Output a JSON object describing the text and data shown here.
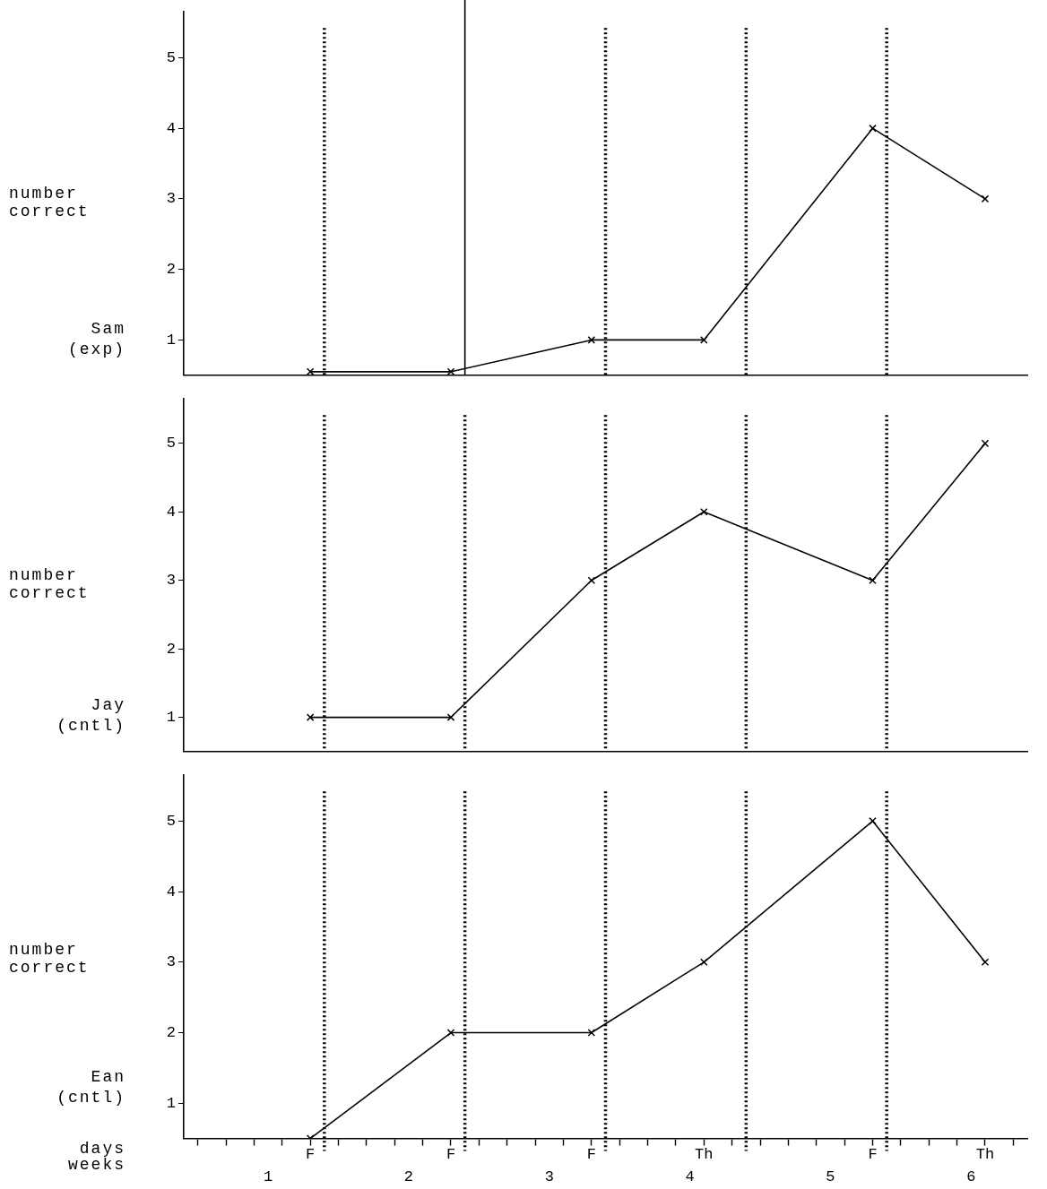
{
  "chart_data": [
    {
      "type": "line",
      "title": "Sam",
      "subtitle": "(exp)",
      "ylabel": "number correct",
      "categories": [
        null,
        null,
        null,
        null,
        null,
        null,
        null,
        null,
        null,
        null,
        null,
        null,
        null,
        null,
        null,
        null,
        null,
        null,
        null,
        null,
        null,
        null,
        null,
        null,
        null,
        null,
        null,
        null,
        null,
        null
      ],
      "series": [
        {
          "color": "#000000",
          "values": [
            null,
            null,
            null,
            null,
            0.55,
            null,
            null,
            null,
            null,
            0.55,
            null,
            null,
            null,
            null,
            1,
            null,
            null,
            null,
            1,
            null,
            null,
            null,
            null,
            null,
            4,
            null,
            null,
            null,
            3,
            null
          ]
        }
      ],
      "ylim": [
        0.5,
        5.65
      ],
      "yticks": [
        1,
        2,
        3,
        4,
        5
      ],
      "tick_labels": "y",
      "grid": false,
      "legend": false,
      "marker": "cross",
      "line_style": "solid"
    },
    {
      "type": "line",
      "title": "Jay",
      "subtitle": "(cntl)",
      "ylabel": "number correct",
      "categories": [
        null,
        null,
        null,
        null,
        null,
        null,
        null,
        null,
        null,
        null,
        null,
        null,
        null,
        null,
        null,
        null,
        null,
        null,
        null,
        null,
        null,
        null,
        null,
        null,
        null,
        null,
        null,
        null,
        null,
        null
      ],
      "series": [
        {
          "color": "#000000",
          "values": [
            null,
            null,
            null,
            null,
            1,
            null,
            null,
            null,
            null,
            1,
            null,
            null,
            null,
            null,
            3,
            null,
            null,
            null,
            4,
            null,
            null,
            null,
            null,
            null,
            3,
            null,
            null,
            null,
            5,
            null
          ]
        }
      ],
      "ylim": [
        0.5,
        5.65
      ],
      "yticks": [
        1,
        2,
        3,
        4,
        5
      ],
      "tick_labels": "y",
      "grid": false,
      "legend": false,
      "marker": "cross",
      "line_style": "solid"
    },
    {
      "type": "line",
      "title": "Ean",
      "subtitle": "(cntl)",
      "ylabel": "number correct",
      "xlabel": "days",
      "categories": [
        null,
        null,
        null,
        null,
        "F",
        null,
        null,
        null,
        null,
        "F",
        null,
        null,
        null,
        null,
        "F",
        null,
        null,
        null,
        "Th",
        null,
        null,
        null,
        null,
        null,
        "F",
        null,
        null,
        null,
        "Th",
        null
      ],
      "series": [
        {
          "color": "#000000",
          "values": [
            null,
            null,
            null,
            null,
            0.5,
            null,
            null,
            null,
            null,
            2,
            null,
            null,
            null,
            null,
            2,
            null,
            null,
            null,
            3,
            null,
            null,
            null,
            null,
            null,
            5,
            null,
            null,
            null,
            3,
            null
          ]
        }
      ],
      "ylim": [
        0.5,
        5.65
      ],
      "yticks": [
        1,
        2,
        3,
        4,
        5
      ],
      "grid": false,
      "legend": false,
      "marker": "cross",
      "line_style": "solid",
      "annotations": [
        "weeks",
        "1",
        "2",
        "3",
        "4",
        "5",
        "6"
      ]
    }
  ]
}
